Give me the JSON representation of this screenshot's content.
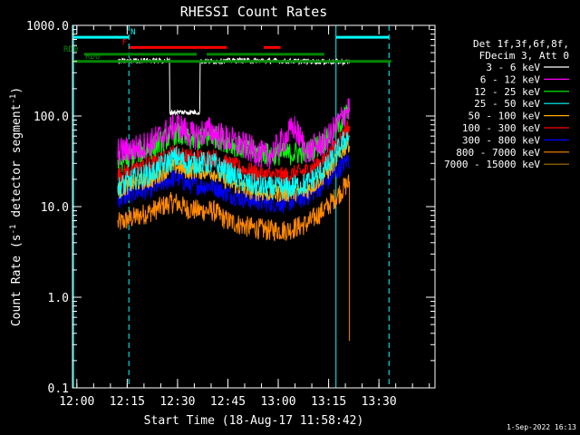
{
  "chart_data": {
    "type": "line",
    "title": "RHESSI Count Rates",
    "xlabel": "Start Time (18-Aug-17 11:58:42)",
    "ylabel_main": "Count Rate (s",
    "ylabel_sup": "-1",
    "ylabel_tail": " detector segment",
    "ylabel_sup2": "-1",
    "ylabel_end": ")",
    "y_scale": "log",
    "ylim": [
      0.1,
      1000
    ],
    "x_unit": "minutes after 11:58:42",
    "xlim": [
      0,
      108
    ],
    "x_ticks": [
      {
        "t": 1.3,
        "label": "12:00"
      },
      {
        "t": 16.3,
        "label": "12:15"
      },
      {
        "t": 31.3,
        "label": "12:30"
      },
      {
        "t": 46.3,
        "label": "12:45"
      },
      {
        "t": 61.3,
        "label": "13:00"
      },
      {
        "t": 76.3,
        "label": "13:15"
      },
      {
        "t": 91.3,
        "label": "13:30"
      }
    ],
    "y_ticks": [
      {
        "v": 0.1,
        "label": "0.1"
      },
      {
        "v": 1,
        "label": "1.0"
      },
      {
        "v": 10,
        "label": "10.0"
      },
      {
        "v": 100,
        "label": "100.0"
      },
      {
        "v": 1000,
        "label": "1000.0"
      }
    ],
    "legend_header": [
      "Det 1f,3f,6f,8f,",
      "FDecim 3, Att 0"
    ],
    "legend_position": "right, outside plot",
    "series": [
      {
        "name": "3 - 6 keV",
        "color": "#ffffff",
        "start": 13.5,
        "end": 82.5,
        "knots": [
          [
            13.5,
            400
          ],
          [
            20,
            410
          ],
          [
            30,
            405
          ],
          [
            40,
            400
          ],
          [
            50,
            410
          ],
          [
            60,
            405
          ],
          [
            70,
            400
          ],
          [
            82,
            395
          ]
        ],
        "sat": [
          [
            29,
            38,
            110
          ]
        ],
        "noise": 0.03
      },
      {
        "name": "6 - 12 keV",
        "color": "#ff00ff",
        "start": 13.5,
        "end": 82.5,
        "knots": [
          [
            13.5,
            40
          ],
          [
            20,
            45
          ],
          [
            25,
            55
          ],
          [
            31,
            80
          ],
          [
            36,
            60
          ],
          [
            41,
            70
          ],
          [
            44,
            60
          ],
          [
            52,
            45
          ],
          [
            58,
            35
          ],
          [
            61,
            45
          ],
          [
            66,
            75
          ],
          [
            70,
            40
          ],
          [
            76,
            55
          ],
          [
            82,
            120
          ]
        ],
        "noise": 0.16
      },
      {
        "name": "12 - 25 keV",
        "color": "#00ff00",
        "start": 13.5,
        "end": 82.5,
        "knots": [
          [
            13.5,
            30
          ],
          [
            18,
            38
          ],
          [
            24,
            45
          ],
          [
            29,
            60
          ],
          [
            31,
            65
          ],
          [
            34,
            55
          ],
          [
            38,
            55
          ],
          [
            42,
            60
          ],
          [
            46,
            52
          ],
          [
            52,
            42
          ],
          [
            58,
            38
          ],
          [
            64,
            38
          ],
          [
            70,
            40
          ],
          [
            76,
            55
          ],
          [
            82,
            110
          ]
        ],
        "noise": 0.13
      },
      {
        "name": "25 - 50 keV",
        "color": "#00ffff",
        "start": 13.5,
        "end": 82.5,
        "knots": [
          [
            13.5,
            16
          ],
          [
            18,
            20
          ],
          [
            24,
            24
          ],
          [
            29,
            32
          ],
          [
            31,
            35
          ],
          [
            34,
            30
          ],
          [
            38,
            30
          ],
          [
            42,
            30
          ],
          [
            46,
            24
          ],
          [
            52,
            18
          ],
          [
            58,
            16
          ],
          [
            64,
            16
          ],
          [
            70,
            18
          ],
          [
            76,
            28
          ],
          [
            82,
            60
          ]
        ],
        "noise": 0.13
      },
      {
        "name": "50 - 100 keV",
        "color": "#ffaa00",
        "start": 13.5,
        "end": 82.5,
        "knots": [
          [
            13.5,
            15
          ],
          [
            18,
            18
          ],
          [
            24,
            20
          ],
          [
            29,
            27
          ],
          [
            31,
            28
          ],
          [
            34,
            25
          ],
          [
            38,
            25
          ],
          [
            42,
            24
          ],
          [
            46,
            19
          ],
          [
            52,
            15
          ],
          [
            58,
            14
          ],
          [
            64,
            14
          ],
          [
            70,
            15
          ],
          [
            76,
            24
          ],
          [
            82,
            50
          ]
        ],
        "noise": 0.1
      },
      {
        "name": "100 - 300 keV",
        "color": "#ff0000",
        "start": 13.5,
        "end": 82.5,
        "knots": [
          [
            13.5,
            22
          ],
          [
            18,
            26
          ],
          [
            24,
            30
          ],
          [
            29,
            38
          ],
          [
            31,
            40
          ],
          [
            34,
            35
          ],
          [
            38,
            35
          ],
          [
            42,
            35
          ],
          [
            46,
            30
          ],
          [
            52,
            25
          ],
          [
            58,
            22
          ],
          [
            64,
            22
          ],
          [
            70,
            25
          ],
          [
            76,
            35
          ],
          [
            82,
            75
          ]
        ],
        "noise": 0.1
      },
      {
        "name": "300 - 800 keV",
        "color": "#0000ff",
        "start": 13.5,
        "end": 82.5,
        "knots": [
          [
            13.5,
            12
          ],
          [
            18,
            14
          ],
          [
            24,
            16
          ],
          [
            29,
            20
          ],
          [
            31,
            21
          ],
          [
            34,
            18
          ],
          [
            38,
            17
          ],
          [
            42,
            17
          ],
          [
            46,
            14
          ],
          [
            52,
            12
          ],
          [
            58,
            11
          ],
          [
            64,
            11
          ],
          [
            70,
            13
          ],
          [
            76,
            19
          ],
          [
            82,
            33
          ]
        ],
        "noise": 0.11
      },
      {
        "name": "800 - 7000 keV",
        "color": "#ff8800",
        "start": 13.5,
        "end": 82.5,
        "knots": [
          [
            13.5,
            6.5
          ],
          [
            18,
            7.5
          ],
          [
            24,
            9
          ],
          [
            29,
            11
          ],
          [
            31,
            11
          ],
          [
            34,
            9.5
          ],
          [
            38,
            9
          ],
          [
            42,
            9
          ],
          [
            46,
            7
          ],
          [
            52,
            6
          ],
          [
            58,
            5.5
          ],
          [
            64,
            5.5
          ],
          [
            70,
            6.5
          ],
          [
            76,
            10
          ],
          [
            82,
            18
          ]
        ],
        "drop": [
          82.5,
          0.33
        ],
        "noise": 0.12
      },
      {
        "name": "7000 - 15000 keV",
        "color": "#aa7700",
        "start": 13.5,
        "end": 82.5,
        "knots": [],
        "noise": 0
      }
    ],
    "vertical_lines": [
      {
        "t": 0.3,
        "color": "#00ffff",
        "dash": false
      },
      {
        "t": 16.8,
        "color": "#00ffff",
        "dash": true
      },
      {
        "t": 78.5,
        "color": "#00ffff",
        "dash": false
      },
      {
        "t": 94.3,
        "color": "#00ffff",
        "dash": true
      }
    ],
    "bars": [
      {
        "label": "N",
        "color": "#00ffff",
        "y": 740,
        "segments": [
          [
            0.3,
            16.8
          ],
          [
            78.5,
            94.3
          ]
        ],
        "label_t": 18
      },
      {
        "label": "F",
        "color": "#ff0000",
        "y": 570,
        "segments": [
          [
            17,
            46
          ],
          [
            57,
            62
          ]
        ],
        "label_t": 15.5
      },
      {
        "label": "RD0",
        "color": "#008800",
        "y": 480,
        "segments": [
          [
            3.5,
            37
          ],
          [
            40,
            75
          ]
        ],
        "label_t": -3
      },
      {
        "label": "RD6",
        "color": "#008800",
        "y": 400,
        "segments": [
          [
            0.3,
            95
          ]
        ],
        "label_t": 6
      }
    ]
  },
  "timestamp": "1-Sep-2022 16:13"
}
